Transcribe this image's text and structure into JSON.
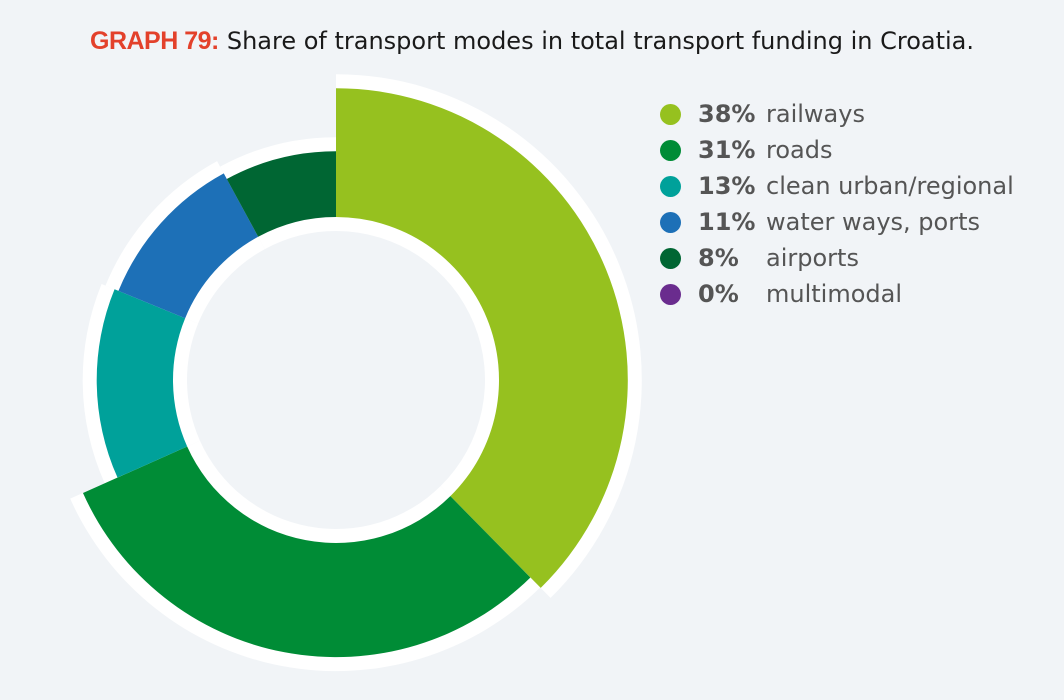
{
  "title": {
    "prefix": "GRAPH 79:",
    "text": "Share of transport modes in total transport funding in Croatia."
  },
  "chart_data": {
    "type": "pie",
    "style": "donut",
    "slices": [
      {
        "label": "railways",
        "percent_label": "38%",
        "value": 38,
        "color": "#96c11f"
      },
      {
        "label": "roads",
        "percent_label": "31%",
        "value": 31,
        "color": "#008c36"
      },
      {
        "label": "clean urban/regional",
        "percent_label": "13%",
        "value": 13,
        "color": "#00a19a"
      },
      {
        "label": "water ways, ports",
        "percent_label": "11%",
        "value": 11,
        "color": "#1d70b7"
      },
      {
        "label": "airports",
        "percent_label": "8%",
        "value": 8,
        "color": "#006633"
      },
      {
        "label": "multimodal",
        "percent_label": "0%",
        "value": 0,
        "color": "#6a2c8e"
      }
    ],
    "legend_position": "right"
  }
}
